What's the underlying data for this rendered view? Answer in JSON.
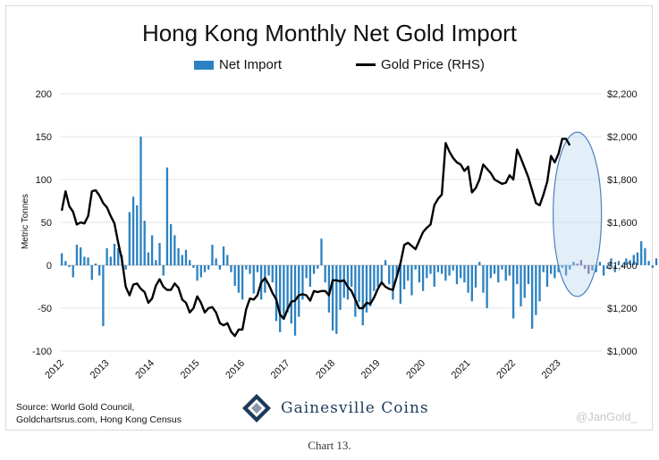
{
  "chart_data": {
    "type": "bar",
    "title": "Hong Kong Monthly Net Gold Import",
    "ylabel": "Metric Tonnes",
    "ylim": [
      -100,
      200
    ],
    "y2lim": [
      1000,
      2200
    ],
    "y_ticks": [
      "200",
      "150",
      "100",
      "50",
      "0",
      "-50",
      "-100"
    ],
    "y2_ticks": [
      "$2,200",
      "$2,000",
      "$1,800",
      "$1,600",
      "$1,400",
      "$1,200",
      "$1,000"
    ],
    "x_ticks": [
      "2012",
      "2013",
      "2014",
      "2015",
      "2016",
      "2017",
      "2018",
      "2019",
      "2020",
      "2021",
      "2022",
      "2023"
    ],
    "grid": true,
    "legend_position": "top",
    "series": [
      {
        "name": "Net Import",
        "axis": "left",
        "color": "#2b82c2",
        "highlight_color": "#7e5a9b",
        "start": "2012-01",
        "values": [
          14,
          5,
          -2,
          -14,
          24,
          21,
          10,
          9,
          -17,
          2,
          -12,
          -71,
          20,
          10,
          25,
          20,
          12,
          -5,
          62,
          80,
          70,
          150,
          52,
          15,
          35,
          6,
          26,
          -12,
          114,
          48,
          35,
          20,
          12,
          18,
          6,
          -3,
          -18,
          -14,
          -8,
          -5,
          24,
          8,
          -5,
          22,
          12,
          -8,
          -24,
          -32,
          -40,
          -5,
          -10,
          -33,
          -8,
          -40,
          -32,
          -12,
          -20,
          -65,
          -78,
          -60,
          -55,
          -68,
          -82,
          -60,
          -40,
          -15,
          -25,
          -10,
          -4,
          31,
          -20,
          -55,
          -76,
          -80,
          -52,
          -38,
          -40,
          -25,
          -60,
          -43,
          -70,
          -55,
          -48,
          -30,
          -25,
          -20,
          6,
          -22,
          -40,
          -12,
          -45,
          -28,
          -18,
          -35,
          -5,
          -20,
          -30,
          -15,
          -10,
          -25,
          -8,
          -10,
          -18,
          -12,
          -6,
          -22,
          -15,
          -20,
          -32,
          -42,
          -26,
          4,
          -32,
          -50,
          -15,
          -10,
          -20,
          -5,
          -18,
          -12,
          -62,
          -22,
          -48,
          -38,
          -22,
          -74,
          -58,
          -42,
          -8,
          -25,
          -10,
          -15,
          -8,
          -3,
          -12,
          -5,
          4,
          2,
          6,
          -4,
          -10,
          -6,
          -8,
          4,
          -12,
          -4,
          8,
          -8,
          5,
          -2,
          8,
          6,
          12,
          15,
          28,
          20,
          5,
          -3,
          8,
          10,
          12,
          6,
          28,
          18,
          42,
          -2,
          2,
          4,
          1
        ]
      },
      {
        "name": "Gold Price (RHS)",
        "axis": "right",
        "color": "#000000",
        "start": "2012-01",
        "values": [
          1655,
          1745,
          1675,
          1650,
          1590,
          1600,
          1595,
          1630,
          1745,
          1750,
          1725,
          1690,
          1670,
          1630,
          1595,
          1505,
          1425,
          1300,
          1260,
          1310,
          1315,
          1290,
          1275,
          1225,
          1245,
          1305,
          1335,
          1300,
          1285,
          1285,
          1315,
          1295,
          1240,
          1225,
          1180,
          1200,
          1255,
          1225,
          1180,
          1200,
          1205,
          1180,
          1130,
          1120,
          1130,
          1090,
          1070,
          1100,
          1100,
          1195,
          1245,
          1240,
          1260,
          1320,
          1340,
          1310,
          1270,
          1240,
          1170,
          1150,
          1195,
          1230,
          1235,
          1260,
          1265,
          1260,
          1235,
          1280,
          1275,
          1280,
          1280,
          1260,
          1330,
          1330,
          1325,
          1330,
          1300,
          1280,
          1240,
          1200,
          1200,
          1225,
          1220,
          1250,
          1290,
          1320,
          1300,
          1290,
          1285,
          1345,
          1410,
          1495,
          1505,
          1490,
          1475,
          1515,
          1555,
          1575,
          1590,
          1680,
          1710,
          1730,
          1970,
          1930,
          1900,
          1880,
          1870,
          1840,
          1860,
          1740,
          1760,
          1800,
          1870,
          1850,
          1830,
          1800,
          1790,
          1780,
          1785,
          1820,
          1800,
          1940,
          1900,
          1855,
          1810,
          1750,
          1690,
          1680,
          1730,
          1790,
          1910,
          1880,
          1920,
          1990,
          1990,
          1960
        ]
      }
    ],
    "annotation": "highlight-ellipse-2023"
  },
  "source_lines": [
    "Source: World Gold Council,",
    "Goldchartsrus.com, Hong Kong Census"
  ],
  "brand": "Gainesville Coins",
  "watermark": "@JanGold_",
  "caption": "Chart 13."
}
